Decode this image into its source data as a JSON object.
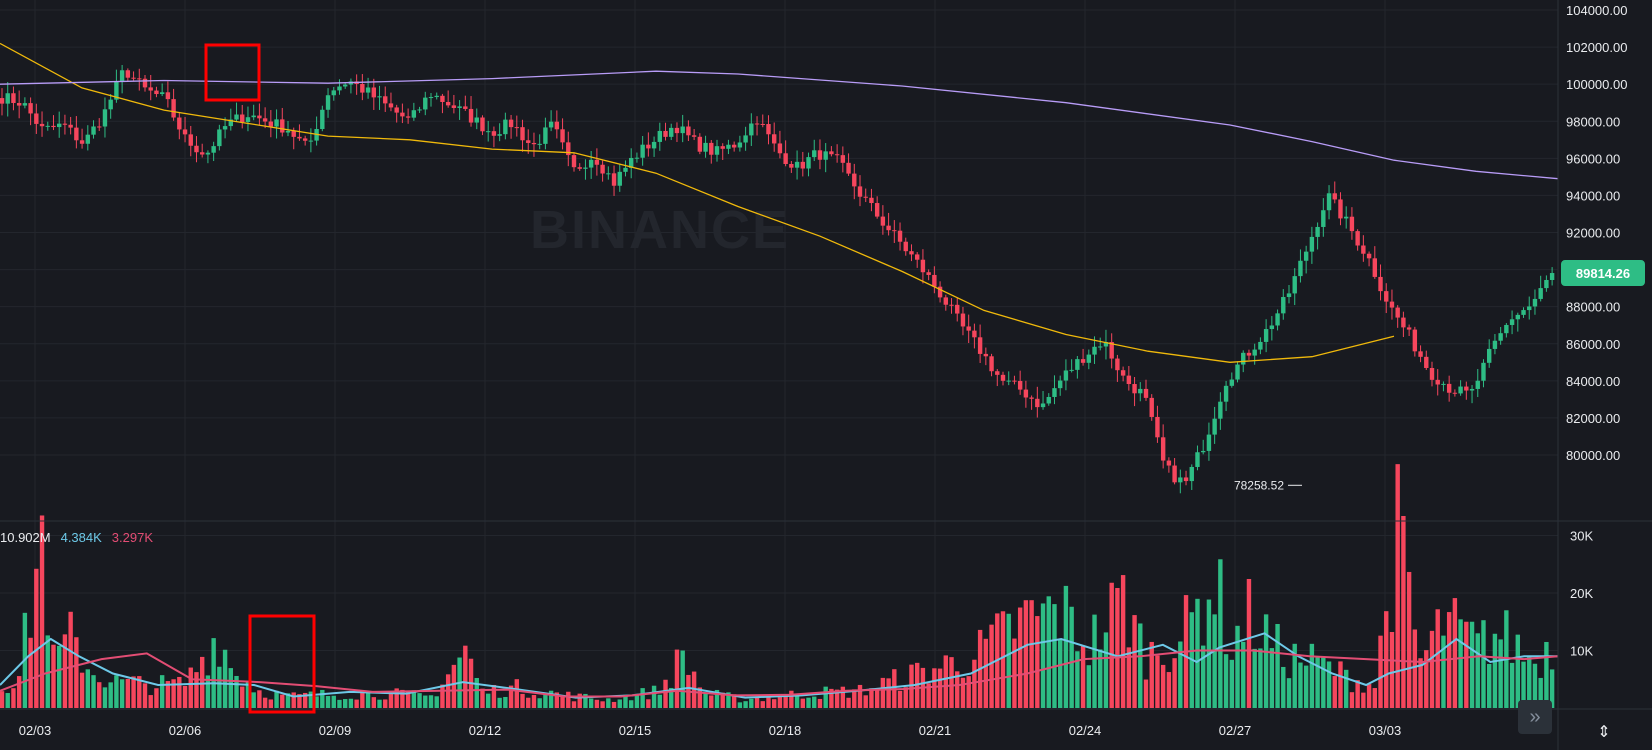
{
  "chart_data": [
    {
      "type": "candlestick",
      "panel": "price",
      "watermark": "BINANCE",
      "ylim": [
        76500,
        104500
      ],
      "y_ticks": [
        "104000.00",
        "102000.00",
        "100000.00",
        "98000.00",
        "96000.00",
        "94000.00",
        "92000.00",
        "90000.00",
        "88000.00",
        "86000.00",
        "84000.00",
        "82000.00",
        "80000.00"
      ],
      "x_ticks": [
        "02/03",
        "02/06",
        "02/09",
        "02/12",
        "02/15",
        "02/18",
        "02/21",
        "02/24",
        "02/27",
        "03/03"
      ],
      "last_price_label": "89814.26",
      "low_label": "78258.52",
      "grid": true,
      "series": [
        {
          "kind": "candles",
          "up_color": "#2ebd85",
          "down_color": "#f6465d",
          "anchor_closes": [
            99300,
            99000,
            97500,
            97800,
            96800,
            98400,
            100800,
            99700,
            99200,
            97000,
            96200,
            97800,
            98400,
            98000,
            97600,
            96500,
            99600,
            100200,
            99500,
            98700,
            98000,
            99500,
            98900,
            98200,
            97400,
            97900,
            96600,
            97800,
            95300,
            96200,
            94700,
            96100,
            97000,
            97800,
            96800,
            96300,
            96800,
            98200,
            96400,
            95500,
            96300,
            95800,
            94200,
            92800,
            91500,
            90200,
            88700,
            87000,
            85600,
            84000,
            83500,
            82600,
            84200,
            85300,
            86200,
            84100,
            83200,
            79300,
            78400,
            80800,
            84000,
            85400,
            86700,
            88500,
            91200,
            94000,
            92400,
            90600,
            88100,
            86400,
            84500,
            83600,
            83200,
            85600,
            87400,
            88100,
            89800
          ]
        },
        {
          "kind": "ma",
          "name": "",
          "color": "#f0b90b",
          "anchors": [
            [
              0,
              102200
            ],
            [
              7,
              99800
            ],
            [
              14,
              98600
            ],
            [
              21,
              97900
            ],
            [
              28,
              97200
            ],
            [
              35,
              97000
            ],
            [
              42,
              96500
            ],
            [
              49,
              96300
            ],
            [
              56,
              95200
            ],
            [
              63,
              93400
            ],
            [
              70,
              91800
            ],
            [
              77,
              89900
            ],
            [
              84,
              87800
            ],
            [
              91,
              86500
            ],
            [
              98,
              85600
            ],
            [
              105,
              85000
            ],
            [
              112,
              85300
            ],
            [
              119,
              86400
            ]
          ]
        },
        {
          "kind": "ma",
          "name": "",
          "color": "#b89cf7",
          "anchors": [
            [
              0,
              100000
            ],
            [
              14,
              100200
            ],
            [
              28,
              100050
            ],
            [
              42,
              100300
            ],
            [
              56,
              100700
            ],
            [
              63,
              100550
            ],
            [
              77,
              99900
            ],
            [
              91,
              99000
            ],
            [
              105,
              97800
            ],
            [
              112,
              96900
            ],
            [
              119,
              95900
            ],
            [
              126,
              95300
            ],
            [
              133,
              94900
            ]
          ]
        }
      ]
    },
    {
      "type": "bar",
      "panel": "volume",
      "ylim": [
        0,
        32000
      ],
      "y_ticks": [
        "30K",
        "20K",
        "10K"
      ],
      "legend_values": [
        "10.902M",
        "4.384K",
        "3.297K"
      ],
      "legend_colors": [
        "#eaecef",
        "#6dc9e8",
        "#e34d74"
      ],
      "series": [
        {
          "kind": "volume",
          "anchors": [
            [
              0,
              4000
            ],
            [
              3,
              5500
            ],
            [
              7,
              30000
            ],
            [
              9,
              8000
            ],
            [
              12,
              12000
            ],
            [
              16,
              6000
            ],
            [
              20,
              4500
            ],
            [
              27,
              4000
            ],
            [
              32,
              4200
            ],
            [
              38,
              13000
            ],
            [
              40,
              7000
            ],
            [
              45,
              3000
            ],
            [
              50,
              2000
            ],
            [
              60,
              2500
            ],
            [
              66,
              2600
            ],
            [
              75,
              2000
            ],
            [
              81,
              10000
            ],
            [
              84,
              2800
            ],
            [
              90,
              3500
            ],
            [
              100,
              2000
            ],
            [
              106,
              1500
            ],
            [
              115,
              3000
            ],
            [
              119,
              9000
            ],
            [
              123,
              2500
            ],
            [
              130,
              1500
            ],
            [
              140,
              2500
            ],
            [
              150,
              3000
            ],
            [
              155,
              4500
            ],
            [
              170,
              9000
            ],
            [
              178,
              15000
            ],
            [
              185,
              17000
            ],
            [
              190,
              11000
            ],
            [
              196,
              19000
            ],
            [
              200,
              9000
            ],
            [
              206,
              12000
            ],
            [
              212,
              22000
            ],
            [
              215,
              11000
            ],
            [
              218,
              16000
            ],
            [
              224,
              9000
            ],
            [
              230,
              8000
            ],
            [
              236,
              5000
            ],
            [
              240,
              4000
            ],
            [
              244,
              30000
            ],
            [
              248,
              8000
            ],
            [
              252,
              15000
            ],
            [
              258,
              11000
            ],
            [
              262,
              13000
            ],
            [
              268,
              8000
            ],
            [
              272,
              12000
            ]
          ]
        },
        {
          "kind": "ma",
          "name": "",
          "color": "#6dc9e8",
          "anchors": [
            [
              0,
              4000
            ],
            [
              5,
              9000
            ],
            [
              9,
              12000
            ],
            [
              14,
              9000
            ],
            [
              20,
              6000
            ],
            [
              28,
              4000
            ],
            [
              38,
              4300
            ],
            [
              45,
              4000
            ],
            [
              52,
              2000
            ],
            [
              62,
              2800
            ],
            [
              72,
              2500
            ],
            [
              82,
              4500
            ],
            [
              92,
              3200
            ],
            [
              102,
              1800
            ],
            [
              112,
              2200
            ],
            [
              122,
              3500
            ],
            [
              132,
              1800
            ],
            [
              142,
              2200
            ],
            [
              152,
              3000
            ],
            [
              162,
              4000
            ],
            [
              172,
              6000
            ],
            [
              182,
              11000
            ],
            [
              188,
              12000
            ],
            [
              198,
              9000
            ],
            [
              206,
              11000
            ],
            [
              212,
              8000
            ],
            [
              216,
              10500
            ],
            [
              224,
              13000
            ],
            [
              230,
              9000
            ],
            [
              236,
              6000
            ],
            [
              242,
              4000
            ],
            [
              246,
              6000
            ],
            [
              252,
              7500
            ],
            [
              258,
              12000
            ],
            [
              264,
              8000
            ],
            [
              270,
              9000
            ],
            [
              276,
              9000
            ]
          ]
        },
        {
          "kind": "ma",
          "name": "",
          "color": "#e34d74",
          "anchors": [
            [
              0,
              3000
            ],
            [
              8,
              6000
            ],
            [
              18,
              8500
            ],
            [
              26,
              9500
            ],
            [
              34,
              5000
            ],
            [
              46,
              4500
            ],
            [
              56,
              3800
            ],
            [
              66,
              2800
            ],
            [
              78,
              3000
            ],
            [
              90,
              3200
            ],
            [
              100,
              2000
            ],
            [
              110,
              2000
            ],
            [
              120,
              3000
            ],
            [
              130,
              2200
            ],
            [
              140,
              2300
            ],
            [
              150,
              3000
            ],
            [
              160,
              3300
            ],
            [
              170,
              4000
            ],
            [
              182,
              6000
            ],
            [
              192,
              8500
            ],
            [
              202,
              9000
            ],
            [
              212,
              10000
            ],
            [
              222,
              10000
            ],
            [
              232,
              9000
            ],
            [
              242,
              8500
            ],
            [
              252,
              8000
            ],
            [
              262,
              9000
            ],
            [
              270,
              8500
            ],
            [
              276,
              9000
            ]
          ]
        }
      ]
    }
  ]
}
